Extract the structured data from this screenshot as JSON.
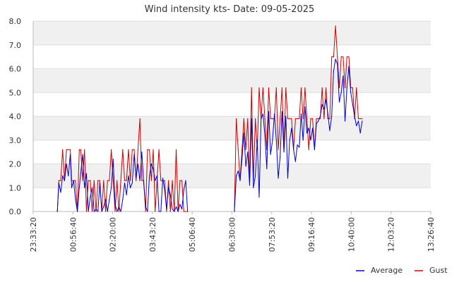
{
  "chart_data": {
    "type": "line",
    "title": "Wind intensity kts- Date: 09-05-2025",
    "x_tick_labels": [
      "23:33:20",
      "00:56:40",
      "02:20:00",
      "03:43:20",
      "05:06:40",
      "06:30:00",
      "07:53:20",
      "09:16:40",
      "10:40:00",
      "12:03:20",
      "13:26:40"
    ],
    "x_range": [
      "23:33:20",
      "13:26:40"
    ],
    "y_tick_labels": [
      "0.0",
      "1.0",
      "2.0",
      "3.0",
      "4.0",
      "5.0",
      "6.0",
      "7.0",
      "8.0"
    ],
    "ylim": [
      0,
      8
    ],
    "grid": "horizontal bands",
    "legend_position": "bottom-right",
    "series": [
      {
        "name": "Average",
        "color": "#0000cc",
        "points": [
          [
            "00:24",
            0.0
          ],
          [
            "00:27",
            1.2
          ],
          [
            "00:31",
            0.8
          ],
          [
            "00:35",
            1.5
          ],
          [
            "00:39",
            1.3
          ],
          [
            "00:43",
            2.0
          ],
          [
            "00:47",
            1.5
          ],
          [
            "00:51",
            2.4
          ],
          [
            "00:54",
            1.0
          ],
          [
            "00:58",
            1.3
          ],
          [
            "01:02",
            0.5
          ],
          [
            "01:06",
            0.0
          ],
          [
            "01:10",
            1.0
          ],
          [
            "01:13",
            1.6
          ],
          [
            "01:17",
            2.4
          ],
          [
            "01:21",
            1.0
          ],
          [
            "01:25",
            1.6
          ],
          [
            "01:29",
            0.0
          ],
          [
            "01:33",
            0.6
          ],
          [
            "01:37",
            1.0
          ],
          [
            "01:41",
            0.0
          ],
          [
            "01:45",
            0.1
          ],
          [
            "01:49",
            0.0
          ],
          [
            "01:53",
            1.2
          ],
          [
            "01:57",
            0.0
          ],
          [
            "02:01",
            0.2
          ],
          [
            "02:05",
            0.5
          ],
          [
            "02:09",
            0.0
          ],
          [
            "02:13",
            0.5
          ],
          [
            "02:17",
            1.0
          ],
          [
            "02:21",
            2.2
          ],
          [
            "02:25",
            0.3
          ],
          [
            "02:29",
            0.0
          ],
          [
            "02:33",
            0.2
          ],
          [
            "02:37",
            0.0
          ],
          [
            "02:41",
            0.5
          ],
          [
            "02:45",
            1.2
          ],
          [
            "02:49",
            0.7
          ],
          [
            "02:53",
            1.5
          ],
          [
            "02:57",
            1.0
          ],
          [
            "03:01",
            1.2
          ],
          [
            "03:05",
            2.4
          ],
          [
            "03:09",
            1.4
          ],
          [
            "03:13",
            2.0
          ],
          [
            "03:17",
            1.3
          ],
          [
            "03:21",
            2.5
          ],
          [
            "03:25",
            1.2
          ],
          [
            "03:29",
            0.2
          ],
          [
            "03:33",
            0.0
          ],
          [
            "03:37",
            1.5
          ],
          [
            "03:41",
            2.0
          ],
          [
            "03:45",
            1.8
          ],
          [
            "03:49",
            1.3
          ],
          [
            "03:53",
            1.5
          ],
          [
            "03:57",
            0.0
          ],
          [
            "04:01",
            0.0
          ],
          [
            "04:05",
            1.4
          ],
          [
            "04:09",
            0.9
          ],
          [
            "04:13",
            0.1
          ],
          [
            "04:17",
            1.0
          ],
          [
            "04:21",
            0.7
          ],
          [
            "04:25",
            0.1
          ],
          [
            "04:29",
            0.0
          ],
          [
            "04:33",
            0.2
          ],
          [
            "04:37",
            0.0
          ],
          [
            "04:41",
            0.3
          ],
          [
            "04:45",
            0.1
          ],
          [
            "04:49",
            0.9
          ],
          [
            "04:53",
            1.3
          ],
          [
            "04:57",
            0.0
          ],
          [
            "06:35",
            0.0
          ],
          [
            "06:39",
            1.5
          ],
          [
            "06:43",
            1.7
          ],
          [
            "06:47",
            1.3
          ],
          [
            "06:51",
            2.2
          ],
          [
            "06:55",
            3.3
          ],
          [
            "06:59",
            1.9
          ],
          [
            "07:03",
            2.5
          ],
          [
            "07:07",
            1.1
          ],
          [
            "07:11",
            3.9
          ],
          [
            "07:15",
            1.0
          ],
          [
            "07:19",
            1.5
          ],
          [
            "07:23",
            3.0
          ],
          [
            "07:27",
            0.6
          ],
          [
            "07:31",
            3.9
          ],
          [
            "07:35",
            4.1
          ],
          [
            "07:39",
            3.2
          ],
          [
            "07:43",
            1.8
          ],
          [
            "07:47",
            4.2
          ],
          [
            "07:51",
            2.4
          ],
          [
            "07:55",
            3.0
          ],
          [
            "07:59",
            4.1
          ],
          [
            "08:03",
            3.0
          ],
          [
            "08:07",
            1.4
          ],
          [
            "08:11",
            2.3
          ],
          [
            "08:15",
            4.2
          ],
          [
            "08:19",
            2.5
          ],
          [
            "08:23",
            4.0
          ],
          [
            "08:27",
            1.4
          ],
          [
            "08:31",
            3.0
          ],
          [
            "08:35",
            3.5
          ],
          [
            "08:39",
            2.6
          ],
          [
            "08:43",
            2.1
          ],
          [
            "08:47",
            2.8
          ],
          [
            "08:51",
            2.7
          ],
          [
            "08:55",
            4.1
          ],
          [
            "08:59",
            3.0
          ],
          [
            "09:03",
            4.4
          ],
          [
            "09:07",
            3.3
          ],
          [
            "09:11",
            3.5
          ],
          [
            "09:15",
            3.0
          ],
          [
            "09:19",
            3.5
          ],
          [
            "09:23",
            2.6
          ],
          [
            "09:27",
            3.7
          ],
          [
            "09:31",
            3.8
          ],
          [
            "09:35",
            4.0
          ],
          [
            "09:39",
            4.5
          ],
          [
            "09:43",
            4.3
          ],
          [
            "09:47",
            4.7
          ],
          [
            "09:51",
            4.1
          ],
          [
            "09:55",
            3.4
          ],
          [
            "09:59",
            4.0
          ],
          [
            "10:03",
            5.9
          ],
          [
            "10:07",
            6.4
          ],
          [
            "10:11",
            6.2
          ],
          [
            "10:15",
            4.6
          ],
          [
            "10:19",
            5.0
          ],
          [
            "10:23",
            5.7
          ],
          [
            "10:27",
            3.8
          ],
          [
            "10:31",
            5.2
          ],
          [
            "10:35",
            6.1
          ],
          [
            "10:39",
            5.0
          ],
          [
            "10:43",
            4.5
          ],
          [
            "10:47",
            4.0
          ],
          [
            "10:51",
            3.6
          ],
          [
            "10:55",
            3.8
          ],
          [
            "10:59",
            3.3
          ],
          [
            "11:03",
            3.8
          ]
        ]
      },
      {
        "name": "Gust",
        "color": "#cc0000",
        "points": [
          [
            "00:24",
            0.0
          ],
          [
            "00:27",
            1.3
          ],
          [
            "00:31",
            1.3
          ],
          [
            "00:35",
            2.6
          ],
          [
            "00:39",
            1.3
          ],
          [
            "00:43",
            2.6
          ],
          [
            "00:47",
            2.6
          ],
          [
            "00:51",
            2.6
          ],
          [
            "00:54",
            1.3
          ],
          [
            "00:58",
            1.3
          ],
          [
            "01:02",
            1.3
          ],
          [
            "01:06",
            0.0
          ],
          [
            "01:10",
            2.6
          ],
          [
            "01:13",
            2.6
          ],
          [
            "01:17",
            1.3
          ],
          [
            "01:21",
            2.6
          ],
          [
            "01:25",
            0.0
          ],
          [
            "01:29",
            1.3
          ],
          [
            "01:33",
            1.3
          ],
          [
            "01:37",
            0.0
          ],
          [
            "01:41",
            1.3
          ],
          [
            "01:45",
            0.0
          ],
          [
            "01:49",
            1.3
          ],
          [
            "01:53",
            1.3
          ],
          [
            "01:57",
            0.0
          ],
          [
            "02:01",
            1.3
          ],
          [
            "02:05",
            0.0
          ],
          [
            "02:09",
            1.3
          ],
          [
            "02:13",
            1.3
          ],
          [
            "02:17",
            2.6
          ],
          [
            "02:21",
            1.3
          ],
          [
            "02:25",
            0.0
          ],
          [
            "02:29",
            1.3
          ],
          [
            "02:33",
            0.0
          ],
          [
            "02:37",
            1.3
          ],
          [
            "02:41",
            2.6
          ],
          [
            "02:45",
            1.3
          ],
          [
            "02:49",
            1.3
          ],
          [
            "02:53",
            2.6
          ],
          [
            "02:57",
            1.3
          ],
          [
            "03:01",
            2.6
          ],
          [
            "03:05",
            2.6
          ],
          [
            "03:09",
            1.3
          ],
          [
            "03:13",
            2.6
          ],
          [
            "03:17",
            3.9
          ],
          [
            "03:21",
            1.3
          ],
          [
            "03:25",
            1.3
          ],
          [
            "03:29",
            0.0
          ],
          [
            "03:33",
            2.6
          ],
          [
            "03:37",
            2.6
          ],
          [
            "03:41",
            1.3
          ],
          [
            "03:45",
            2.6
          ],
          [
            "03:49",
            0.0
          ],
          [
            "03:53",
            1.3
          ],
          [
            "03:57",
            2.6
          ],
          [
            "04:01",
            1.3
          ],
          [
            "04:05",
            1.3
          ],
          [
            "04:09",
            1.3
          ],
          [
            "04:13",
            0.0
          ],
          [
            "04:17",
            1.3
          ],
          [
            "04:21",
            0.0
          ],
          [
            "04:25",
            1.3
          ],
          [
            "04:29",
            0.0
          ],
          [
            "04:33",
            2.6
          ],
          [
            "04:37",
            0.0
          ],
          [
            "04:41",
            1.3
          ],
          [
            "04:45",
            1.3
          ],
          [
            "04:49",
            0.0
          ],
          [
            "04:53",
            0.0
          ],
          [
            "04:57",
            0.0
          ],
          [
            "06:35",
            0.0
          ],
          [
            "06:39",
            3.9
          ],
          [
            "06:43",
            2.6
          ],
          [
            "06:47",
            1.3
          ],
          [
            "06:51",
            2.6
          ],
          [
            "06:55",
            3.9
          ],
          [
            "06:59",
            2.6
          ],
          [
            "07:03",
            3.9
          ],
          [
            "07:07",
            1.3
          ],
          [
            "07:11",
            5.2
          ],
          [
            "07:15",
            1.3
          ],
          [
            "07:19",
            3.9
          ],
          [
            "07:23",
            2.6
          ],
          [
            "07:27",
            5.2
          ],
          [
            "07:31",
            3.9
          ],
          [
            "07:35",
            5.2
          ],
          [
            "07:39",
            3.9
          ],
          [
            "07:43",
            2.6
          ],
          [
            "07:47",
            5.2
          ],
          [
            "07:51",
            3.9
          ],
          [
            "07:55",
            3.9
          ],
          [
            "07:59",
            3.9
          ],
          [
            "08:03",
            5.2
          ],
          [
            "08:07",
            2.6
          ],
          [
            "08:11",
            3.9
          ],
          [
            "08:15",
            5.2
          ],
          [
            "08:19",
            2.6
          ],
          [
            "08:23",
            5.2
          ],
          [
            "08:27",
            3.9
          ],
          [
            "08:31",
            3.9
          ],
          [
            "08:35",
            3.9
          ],
          [
            "08:39",
            2.6
          ],
          [
            "08:43",
            3.9
          ],
          [
            "08:47",
            3.9
          ],
          [
            "08:51",
            3.9
          ],
          [
            "08:55",
            5.2
          ],
          [
            "08:59",
            3.9
          ],
          [
            "09:03",
            5.2
          ],
          [
            "09:07",
            3.9
          ],
          [
            "09:11",
            2.6
          ],
          [
            "09:15",
            3.9
          ],
          [
            "09:19",
            3.9
          ],
          [
            "09:23",
            2.6
          ],
          [
            "09:27",
            3.9
          ],
          [
            "09:31",
            3.9
          ],
          [
            "09:35",
            3.9
          ],
          [
            "09:39",
            5.2
          ],
          [
            "09:43",
            3.9
          ],
          [
            "09:47",
            5.2
          ],
          [
            "09:51",
            3.9
          ],
          [
            "09:55",
            3.9
          ],
          [
            "09:59",
            6.5
          ],
          [
            "10:03",
            6.5
          ],
          [
            "10:07",
            7.8
          ],
          [
            "10:11",
            6.5
          ],
          [
            "10:15",
            5.2
          ],
          [
            "10:19",
            6.5
          ],
          [
            "10:23",
            6.5
          ],
          [
            "10:27",
            5.2
          ],
          [
            "10:31",
            6.5
          ],
          [
            "10:35",
            6.5
          ],
          [
            "10:39",
            5.2
          ],
          [
            "10:43",
            5.2
          ],
          [
            "10:47",
            3.9
          ],
          [
            "10:51",
            5.2
          ],
          [
            "10:55",
            3.9
          ],
          [
            "10:59",
            3.9
          ],
          [
            "11:03",
            3.9
          ]
        ]
      }
    ]
  }
}
